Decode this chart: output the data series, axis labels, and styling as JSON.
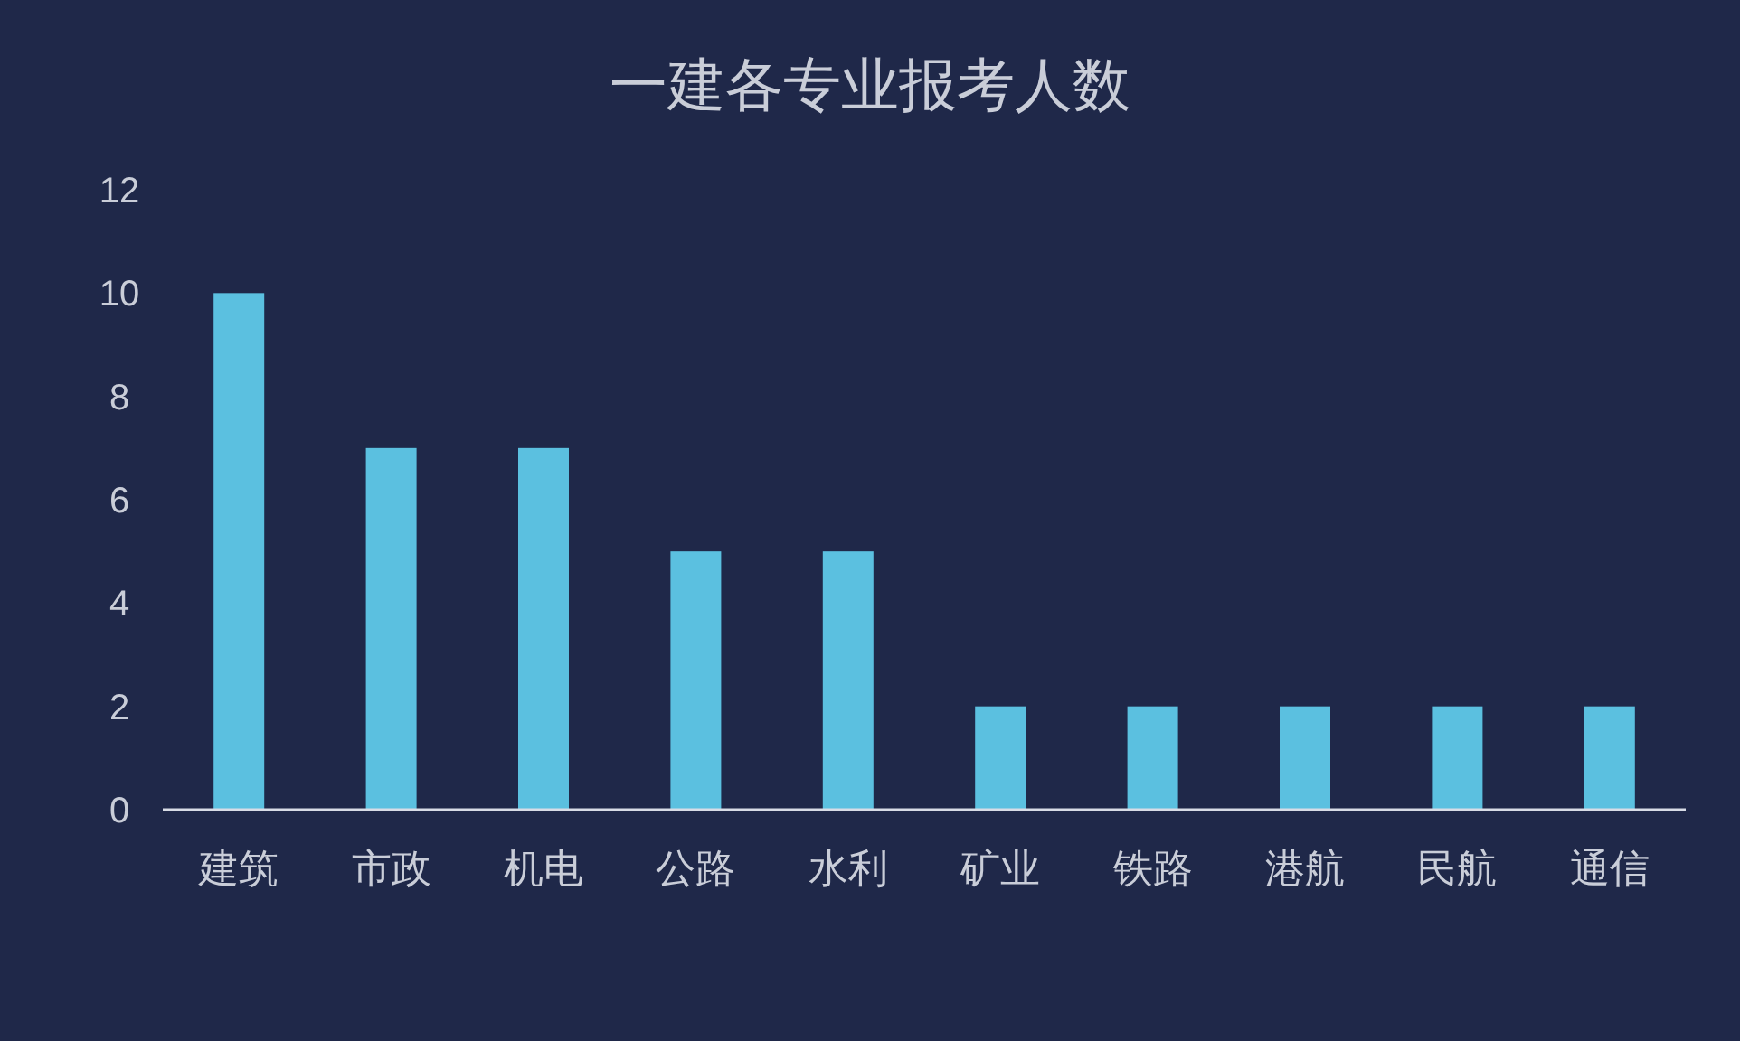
{
  "chart_data": {
    "type": "bar",
    "title": "一建各专业报考人数",
    "categories": [
      "建筑",
      "市政",
      "机电",
      "公路",
      "水利",
      "矿业",
      "铁路",
      "港航",
      "民航",
      "通信"
    ],
    "values": [
      10,
      7,
      7,
      5,
      5,
      2,
      2,
      2,
      2,
      2
    ],
    "color": "#5bc0e0",
    "ylim": [
      0,
      12
    ],
    "yticks": [
      0,
      2,
      4,
      6,
      8,
      10,
      12
    ]
  }
}
